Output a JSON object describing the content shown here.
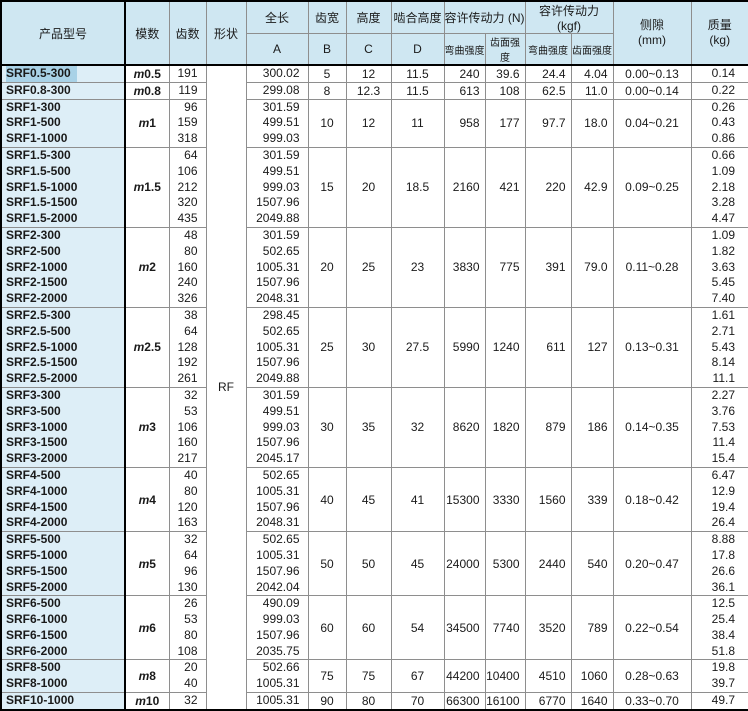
{
  "table": {
    "shape_label": "RF",
    "headers": {
      "product_model": "产品型号",
      "module": "模数",
      "teeth": "齿数",
      "shape": "形状",
      "total_length": "全长",
      "total_length_sub": "A",
      "face_width": "齿宽",
      "face_width_sub": "B",
      "height": "高度",
      "height_sub": "C",
      "mesh_height": "啮合高度",
      "mesh_height_sub": "D",
      "allow_force_n": "容许传动力 (N)",
      "allow_force_kgf": "容许传动力 (kgf)",
      "bending_strength": "弯曲强度",
      "surface_strength": "齿面强度",
      "backlash_line1": "侧隙",
      "backlash_line2": "(mm)",
      "mass_line1": "质量",
      "mass_line2": "(kg)"
    },
    "groups": [
      {
        "module": "m0.5",
        "selected_model": 0,
        "models": [
          "SRF0.5-300"
        ],
        "teeth": [
          "191"
        ],
        "lengths": [
          "300.02"
        ],
        "b": "5",
        "c": "12",
        "d": "11.5",
        "bend_n": "240",
        "surf_n": "39.6",
        "bend_kgf": "24.4",
        "surf_kgf": "4.04",
        "backlash": "0.00~0.13",
        "masses": [
          "0.14"
        ]
      },
      {
        "module": "m0.8",
        "models": [
          "SRF0.8-300"
        ],
        "teeth": [
          "119"
        ],
        "lengths": [
          "299.08"
        ],
        "b": "8",
        "c": "12.3",
        "d": "11.5",
        "bend_n": "613",
        "surf_n": "108",
        "bend_kgf": "62.5",
        "surf_kgf": "11.0",
        "backlash": "0.00~0.14",
        "masses": [
          "0.22"
        ]
      },
      {
        "module": "m1",
        "models": [
          "SRF1-300",
          "SRF1-500",
          "SRF1-1000"
        ],
        "teeth": [
          "96",
          "159",
          "318"
        ],
        "lengths": [
          "301.59",
          "499.51",
          "999.03"
        ],
        "b": "10",
        "c": "12",
        "d": "11",
        "bend_n": "958",
        "surf_n": "177",
        "bend_kgf": "97.7",
        "surf_kgf": "18.0",
        "backlash": "0.04~0.21",
        "masses": [
          "0.26",
          "0.43",
          "0.86"
        ]
      },
      {
        "module": "m1.5",
        "models": [
          "SRF1.5-300",
          "SRF1.5-500",
          "SRF1.5-1000",
          "SRF1.5-1500",
          "SRF1.5-2000"
        ],
        "teeth": [
          "64",
          "106",
          "212",
          "320",
          "435"
        ],
        "lengths": [
          "301.59",
          "499.51",
          "999.03",
          "1507.96",
          "2049.88"
        ],
        "b": "15",
        "c": "20",
        "d": "18.5",
        "bend_n": "2160",
        "surf_n": "421",
        "bend_kgf": "220",
        "surf_kgf": "42.9",
        "backlash": "0.09~0.25",
        "masses": [
          "0.66",
          "1.09",
          "2.18",
          "3.28",
          "4.47"
        ]
      },
      {
        "module": "m2",
        "models": [
          "SRF2-300",
          "SRF2-500",
          "SRF2-1000",
          "SRF2-1500",
          "SRF2-2000"
        ],
        "teeth": [
          "48",
          "80",
          "160",
          "240",
          "326"
        ],
        "lengths": [
          "301.59",
          "502.65",
          "1005.31",
          "1507.96",
          "2048.31"
        ],
        "b": "20",
        "c": "25",
        "d": "23",
        "bend_n": "3830",
        "surf_n": "775",
        "bend_kgf": "391",
        "surf_kgf": "79.0",
        "backlash": "0.11~0.28",
        "masses": [
          "1.09",
          "1.82",
          "3.63",
          "5.45",
          "7.40"
        ]
      },
      {
        "module": "m2.5",
        "models": [
          "SRF2.5-300",
          "SRF2.5-500",
          "SRF2.5-1000",
          "SRF2.5-1500",
          "SRF2.5-2000"
        ],
        "teeth": [
          "38",
          "64",
          "128",
          "192",
          "261"
        ],
        "lengths": [
          "298.45",
          "502.65",
          "1005.31",
          "1507.96",
          "2049.88"
        ],
        "b": "25",
        "c": "30",
        "d": "27.5",
        "bend_n": "5990",
        "surf_n": "1240",
        "bend_kgf": "611",
        "surf_kgf": "127",
        "backlash": "0.13~0.31",
        "masses": [
          "1.61",
          "2.71",
          "5.43",
          "8.14",
          "11.1"
        ]
      },
      {
        "module": "m3",
        "models": [
          "SRF3-300",
          "SRF3-500",
          "SRF3-1000",
          "SRF3-1500",
          "SRF3-2000"
        ],
        "teeth": [
          "32",
          "53",
          "106",
          "160",
          "217"
        ],
        "lengths": [
          "301.59",
          "499.51",
          "999.03",
          "1507.96",
          "2045.17"
        ],
        "b": "30",
        "c": "35",
        "d": "32",
        "bend_n": "8620",
        "surf_n": "1820",
        "bend_kgf": "879",
        "surf_kgf": "186",
        "backlash": "0.14~0.35",
        "masses": [
          "2.27",
          "3.76",
          "7.53",
          "11.4",
          "15.4"
        ]
      },
      {
        "module": "m4",
        "models": [
          "SRF4-500",
          "SRF4-1000",
          "SRF4-1500",
          "SRF4-2000"
        ],
        "teeth": [
          "40",
          "80",
          "120",
          "163"
        ],
        "lengths": [
          "502.65",
          "1005.31",
          "1507.96",
          "2048.31"
        ],
        "b": "40",
        "c": "45",
        "d": "41",
        "bend_n": "15300",
        "surf_n": "3330",
        "bend_kgf": "1560",
        "surf_kgf": "339",
        "backlash": "0.18~0.42",
        "masses": [
          "6.47",
          "12.9",
          "19.4",
          "26.4"
        ]
      },
      {
        "module": "m5",
        "models": [
          "SRF5-500",
          "SRF5-1000",
          "SRF5-1500",
          "SRF5-2000"
        ],
        "teeth": [
          "32",
          "64",
          "96",
          "130"
        ],
        "lengths": [
          "502.65",
          "1005.31",
          "1507.96",
          "2042.04"
        ],
        "b": "50",
        "c": "50",
        "d": "45",
        "bend_n": "24000",
        "surf_n": "5300",
        "bend_kgf": "2440",
        "surf_kgf": "540",
        "backlash": "0.20~0.47",
        "masses": [
          "8.88",
          "17.8",
          "26.6",
          "36.1"
        ]
      },
      {
        "module": "m6",
        "models": [
          "SRF6-500",
          "SRF6-1000",
          "SRF6-1500",
          "SRF6-2000"
        ],
        "teeth": [
          "26",
          "53",
          "80",
          "108"
        ],
        "lengths": [
          "490.09",
          "999.03",
          "1507.96",
          "2035.75"
        ],
        "b": "60",
        "c": "60",
        "d": "54",
        "bend_n": "34500",
        "surf_n": "7740",
        "bend_kgf": "3520",
        "surf_kgf": "789",
        "backlash": "0.22~0.54",
        "masses": [
          "12.5",
          "25.4",
          "38.4",
          "51.8"
        ]
      },
      {
        "module": "m8",
        "models": [
          "SRF8-500",
          "SRF8-1000"
        ],
        "teeth": [
          "20",
          "40"
        ],
        "lengths": [
          "502.66",
          "1005.31"
        ],
        "b": "75",
        "c": "75",
        "d": "67",
        "bend_n": "44200",
        "surf_n": "10400",
        "bend_kgf": "4510",
        "surf_kgf": "1060",
        "backlash": "0.28~0.63",
        "masses": [
          "19.8",
          "39.7"
        ]
      },
      {
        "module": "m10",
        "models": [
          "SRF10-1000"
        ],
        "teeth": [
          "32"
        ],
        "lengths": [
          "1005.31"
        ],
        "b": "90",
        "c": "80",
        "d": "70",
        "bend_n": "66300",
        "surf_n": "16100",
        "bend_kgf": "6770",
        "surf_kgf": "1640",
        "backlash": "0.33~0.70",
        "masses": [
          "49.7"
        ]
      }
    ]
  },
  "colors": {
    "header_bg": "#cfe7f2",
    "model_col_bg": "#ddeef7",
    "highlight_bg": "#a9d2e7",
    "grid_line": "#8e8e8e",
    "frame_line": "#000000"
  }
}
